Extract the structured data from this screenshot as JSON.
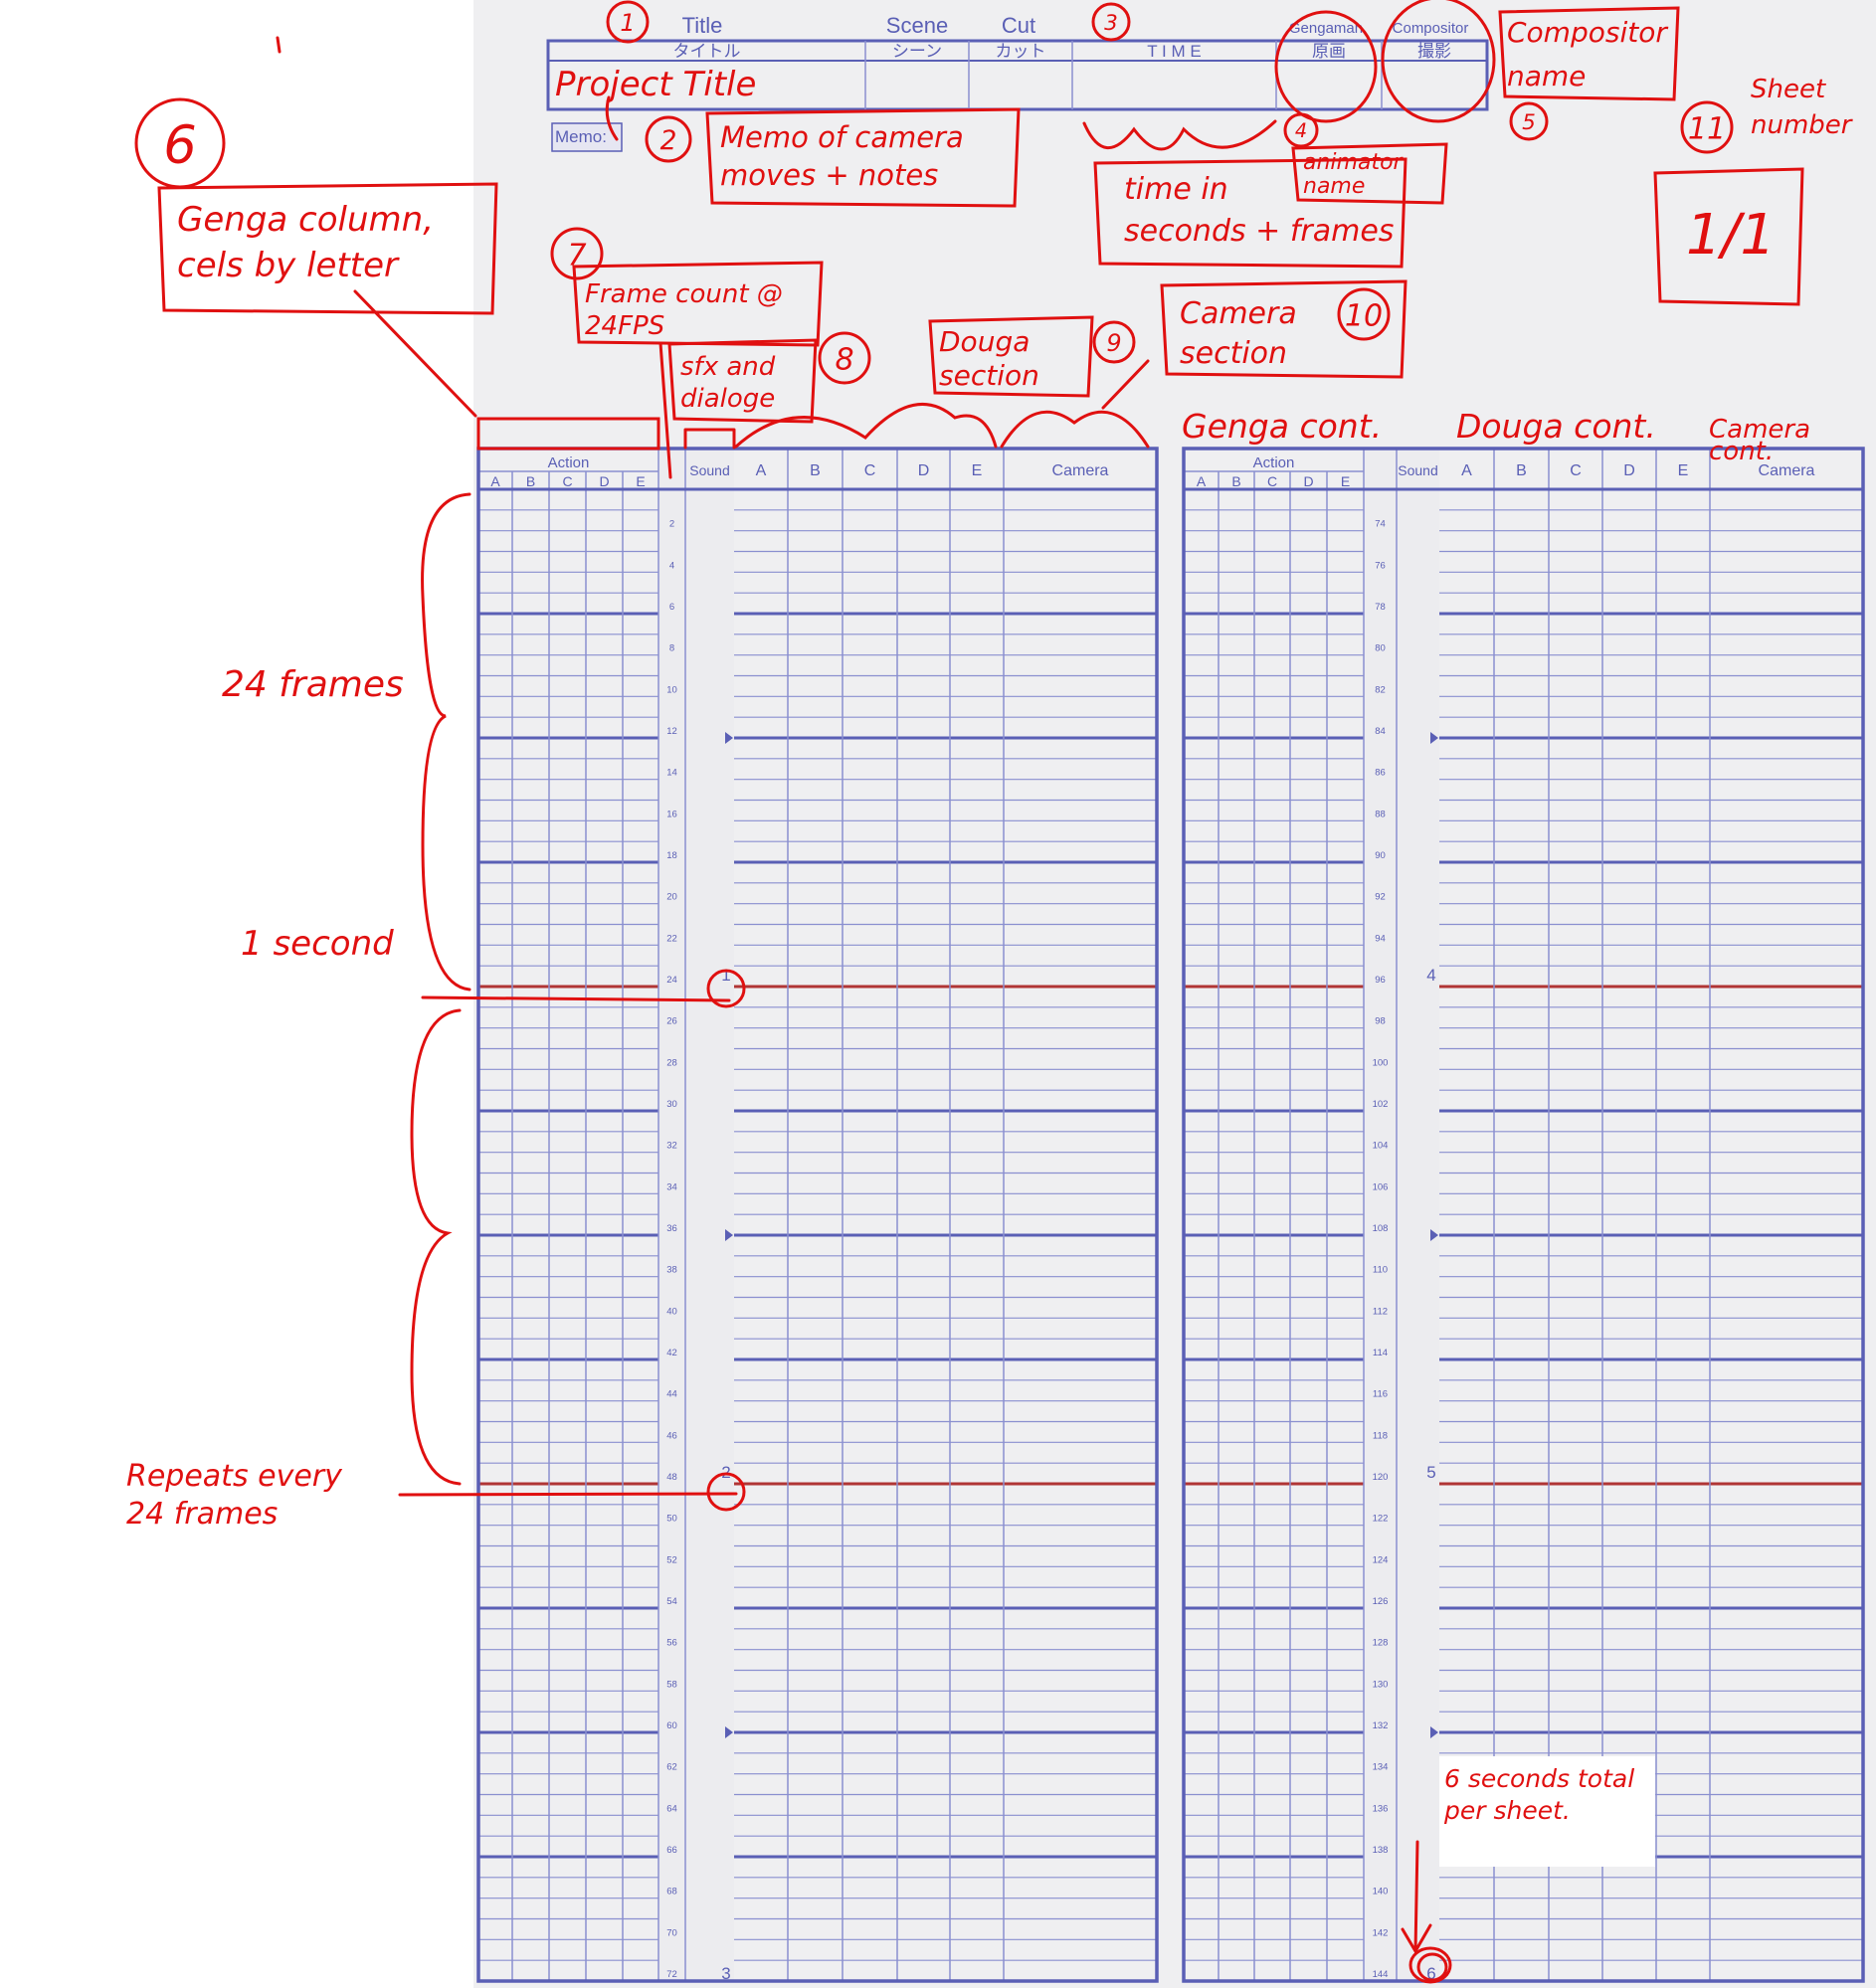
{
  "colors": {
    "form_blue": "#5a5fb5",
    "grid_line": "#8a8fd0",
    "annotation_red": "#e01010",
    "second_line": "#b03535",
    "sheet_bg": "#efeff1"
  },
  "header": {
    "labels_en": [
      "Title",
      "Scene",
      "Cut",
      "Gengaman",
      "Compositor"
    ],
    "columns_jp": [
      "タイトル",
      "シーン",
      "カット",
      "T I M E",
      "原画",
      "撮影"
    ],
    "memo_label": "Memo:"
  },
  "table": {
    "action_label": "Action",
    "action_cols": [
      "A",
      "B",
      "C",
      "D",
      "E"
    ],
    "sound_label": "Sound",
    "douga_cols": [
      "A",
      "B",
      "C",
      "D",
      "E"
    ],
    "camera_label": "Camera",
    "frames_per_table": 72,
    "fps": 24,
    "left_seconds": [
      "1",
      "2",
      "3"
    ],
    "right_seconds": [
      "4",
      "5",
      "6"
    ]
  },
  "annotations": {
    "n1": "1",
    "project_title": "Project Title",
    "n2": "2",
    "memo_note": [
      "Memo of camera",
      "moves + notes"
    ],
    "n3": "3",
    "n4": "4",
    "animator_name": [
      "animator",
      "name"
    ],
    "time_note": [
      "time in",
      "seconds + frames"
    ],
    "n5": "5",
    "compositor_name": [
      "Compositor",
      "name"
    ],
    "n11": "11",
    "sheet_number": [
      "Sheet",
      "number"
    ],
    "sheet_count": "1/1",
    "n6": "6",
    "genga_note": [
      "Genga column,",
      "cels by letter"
    ],
    "n7": "7",
    "frame_count": [
      "Frame count @",
      "24FPS"
    ],
    "n8": "8",
    "sfx_note": [
      "sfx and",
      "dialoge"
    ],
    "n9": "9",
    "douga_note": [
      "Douga",
      "section"
    ],
    "n10": "10",
    "camera_note": [
      "Camera",
      "section"
    ],
    "genga_cont": "Genga cont.",
    "douga_cont": "Douga cont.",
    "camera_cont": [
      "Camera",
      "cont."
    ],
    "frames_24": "24 frames",
    "one_second": "1 second",
    "repeats": [
      "Repeats every",
      "24 frames"
    ],
    "total_note": [
      "6 seconds total",
      "per sheet."
    ]
  }
}
